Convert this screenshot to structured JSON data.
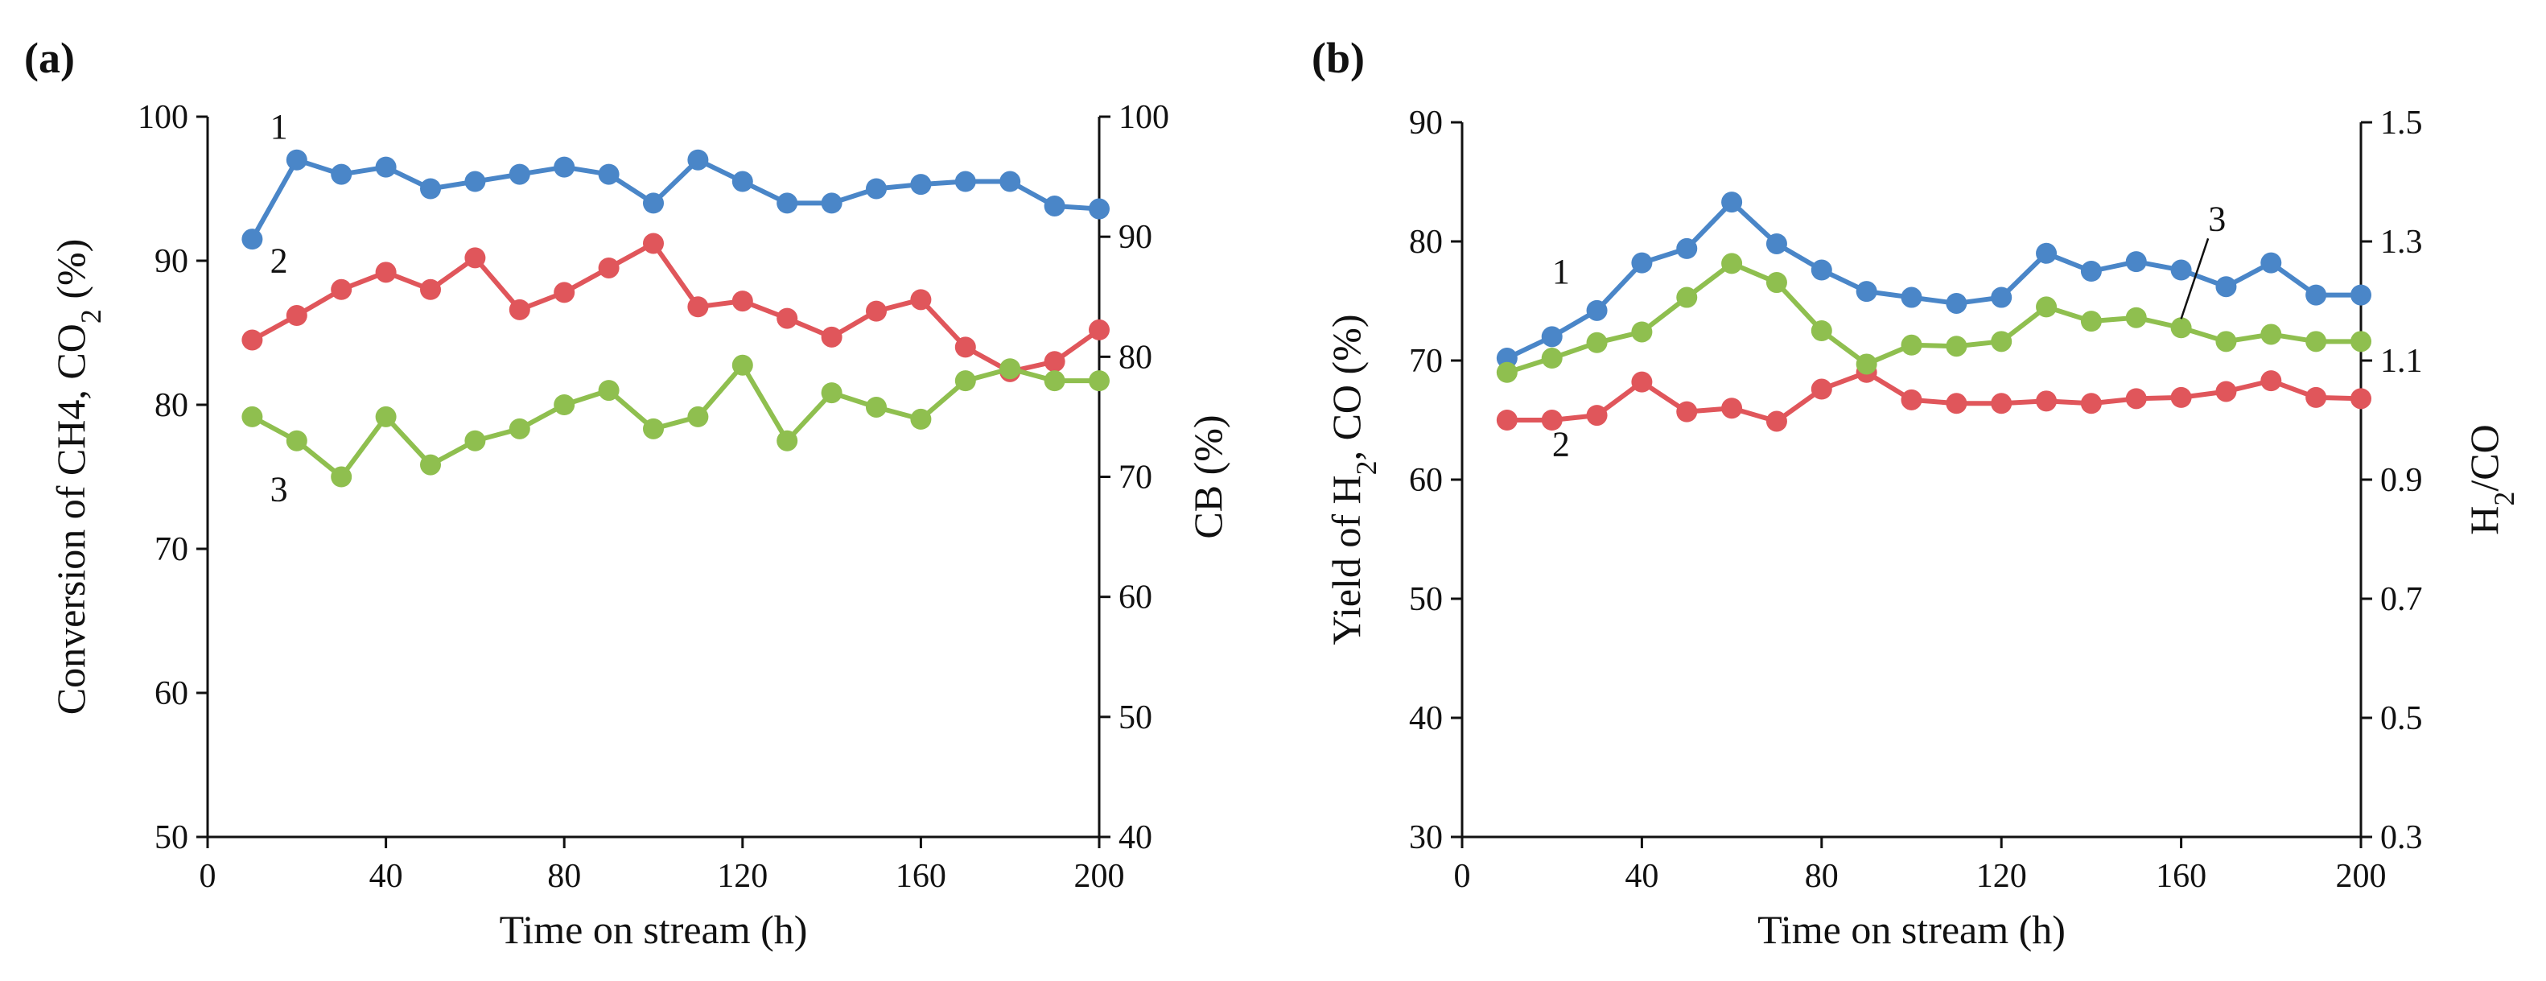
{
  "chart_data": [
    {
      "panel": "a",
      "panel_label": "(a)",
      "type": "line",
      "xlabel": "Time on stream (h)",
      "ylabel_left_parts": [
        "Conversion of CH4, CO",
        "2",
        " (%)"
      ],
      "ylabel_right": "CB (%)",
      "xlim": [
        0,
        200
      ],
      "ylim_left": [
        50,
        100
      ],
      "ylim_right": [
        40,
        100
      ],
      "x_ticks": [
        0,
        40,
        80,
        120,
        160,
        200
      ],
      "y_ticks_left": [
        50,
        60,
        70,
        80,
        90,
        100
      ],
      "y_ticks_right": [
        40,
        50,
        60,
        70,
        80,
        90,
        100
      ],
      "series": [
        {
          "name": "1",
          "label": "1",
          "color": "#4a86c8",
          "axis": "left",
          "x": [
            10,
            20,
            30,
            40,
            50,
            60,
            70,
            80,
            90,
            100,
            110,
            120,
            130,
            140,
            150,
            160,
            170,
            180,
            190,
            200
          ],
          "values": [
            91.5,
            97,
            96,
            96.5,
            95,
            95.5,
            96,
            96.5,
            96,
            94,
            97,
            95.5,
            94,
            94,
            95,
            95.3,
            95.5,
            95.5,
            93.8,
            93.6
          ]
        },
        {
          "name": "2",
          "label": "2",
          "color": "#e0565b",
          "axis": "left",
          "x": [
            10,
            20,
            30,
            40,
            50,
            60,
            70,
            80,
            90,
            100,
            110,
            120,
            130,
            140,
            150,
            160,
            170,
            180,
            190,
            200
          ],
          "values": [
            84.5,
            86.2,
            88,
            89.2,
            88,
            90.2,
            86.6,
            87.8,
            89.5,
            91.2,
            86.8,
            87.2,
            86,
            84.7,
            86.5,
            87.3,
            84,
            82.3,
            83,
            85.2
          ]
        },
        {
          "name": "3",
          "label": "3",
          "color": "#8fbf4f",
          "axis": "right",
          "x": [
            10,
            20,
            30,
            40,
            50,
            60,
            70,
            80,
            90,
            100,
            110,
            120,
            130,
            140,
            150,
            160,
            170,
            180,
            190,
            200
          ],
          "values": [
            75,
            73,
            70,
            75,
            71,
            73,
            74,
            76,
            77.2,
            74,
            75,
            79.3,
            73,
            77,
            75.8,
            74.8,
            78,
            79,
            78,
            78
          ]
        }
      ]
    },
    {
      "panel": "b",
      "panel_label": "(b)",
      "type": "line",
      "xlabel": "Time on stream (h)",
      "ylabel_left_parts": [
        "Yield of H",
        "2",
        ", CO (%)"
      ],
      "ylabel_right_parts": [
        "H",
        "2",
        "/CO"
      ],
      "xlim": [
        0,
        200
      ],
      "ylim_left": [
        30,
        90
      ],
      "ylim_right": [
        0.3,
        1.5
      ],
      "x_ticks": [
        0,
        40,
        80,
        120,
        160,
        200
      ],
      "y_ticks_left": [
        30,
        40,
        50,
        60,
        70,
        80,
        90
      ],
      "y_ticks_right": [
        "0.3",
        "0.5",
        "0.7",
        "0.9",
        "1.1",
        "1.3",
        "1.5"
      ],
      "series": [
        {
          "name": "1",
          "label": "1",
          "color": "#4a86c8",
          "axis": "left",
          "x": [
            10,
            20,
            30,
            40,
            50,
            60,
            70,
            80,
            90,
            100,
            110,
            120,
            130,
            140,
            150,
            160,
            170,
            180,
            190,
            200
          ],
          "values": [
            70.2,
            72,
            74.2,
            78.2,
            79.4,
            83.3,
            79.8,
            77.6,
            75.8,
            75.3,
            74.8,
            75.3,
            79,
            77.5,
            78.3,
            77.6,
            76.2,
            78.2,
            75.5,
            75.5
          ]
        },
        {
          "name": "2",
          "label": "2",
          "color": "#e0565b",
          "axis": "left",
          "x": [
            10,
            20,
            30,
            40,
            50,
            60,
            70,
            80,
            90,
            100,
            110,
            120,
            130,
            140,
            150,
            160,
            170,
            180,
            190,
            200
          ],
          "values": [
            65,
            65,
            65.4,
            68.2,
            65.7,
            66,
            64.9,
            67.6,
            69,
            66.7,
            66.4,
            66.4,
            66.6,
            66.4,
            66.8,
            66.9,
            67.4,
            68.3,
            66.9,
            66.8
          ]
        },
        {
          "name": "3",
          "label": "3",
          "color": "#8fbf4f",
          "axis": "right",
          "x": [
            10,
            20,
            30,
            40,
            50,
            60,
            70,
            80,
            90,
            100,
            110,
            120,
            130,
            140,
            150,
            160,
            170,
            180,
            190,
            200
          ],
          "values": [
            1.08,
            1.104,
            1.13,
            1.148,
            1.206,
            1.263,
            1.231,
            1.15,
            1.094,
            1.126,
            1.124,
            1.132,
            1.19,
            1.166,
            1.172,
            1.155,
            1.132,
            1.144,
            1.132,
            1.132
          ]
        }
      ]
    }
  ]
}
